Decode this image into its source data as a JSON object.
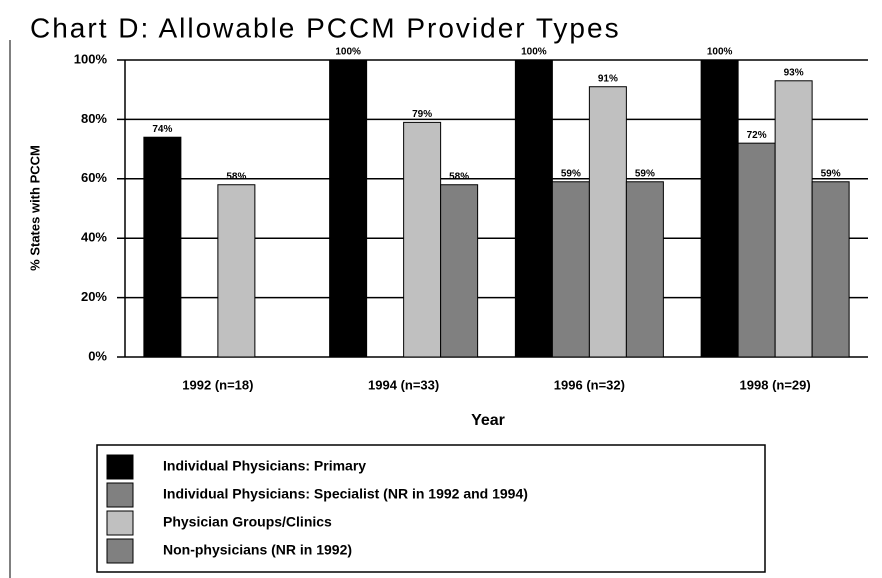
{
  "chart_data": {
    "type": "bar",
    "title": "Chart D:  Allowable PCCM Provider Types",
    "x_label": "Year",
    "y_label": "% States with PCCM",
    "categories": [
      "1992 (n=18)",
      "1994 (n=33)",
      "1996 (n=32)",
      "1998 (n=29)"
    ],
    "series": [
      {
        "name": "Individual Physicians: Primary",
        "color": "#000000",
        "values": [
          74,
          100,
          100,
          100
        ],
        "value_labels": [
          "74%",
          "100%",
          "100%",
          "100%"
        ]
      },
      {
        "name": "Individual Physicians:  Specialist (NR in 1992 and 1994)",
        "color": "#808080",
        "values": [
          null,
          null,
          59,
          72
        ],
        "value_labels": [
          null,
          null,
          "59%",
          "72%"
        ]
      },
      {
        "name": "Physician Groups/Clinics",
        "color": "#c0c0c0",
        "values": [
          58,
          79,
          91,
          93
        ],
        "value_labels": [
          "58%",
          "79%",
          "91%",
          "93%"
        ]
      },
      {
        "name": "Non-physicians (NR in 1992)",
        "color": "#808080",
        "values": [
          null,
          58,
          59,
          59
        ],
        "value_labels": [
          null,
          "58%",
          "59%",
          "59%"
        ]
      }
    ],
    "ylim": [
      0,
      100
    ],
    "yticks": [
      {
        "value": 0,
        "label": "0%"
      },
      {
        "value": 20,
        "label": "20%"
      },
      {
        "value": 40,
        "label": "40%"
      },
      {
        "value": 60,
        "label": "60%"
      },
      {
        "value": 80,
        "label": "80%"
      },
      {
        "value": 100,
        "label": "100%"
      }
    ],
    "grid": true
  }
}
